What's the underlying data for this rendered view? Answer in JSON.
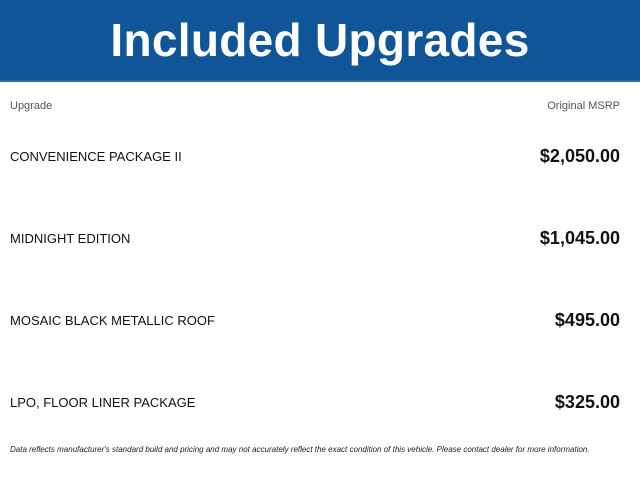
{
  "header": {
    "title": "Included Upgrades",
    "bg_color": "#0f5597"
  },
  "columns": {
    "upgrade": "Upgrade",
    "msrp": "Original MSRP"
  },
  "rows": [
    {
      "name": "CONVENIENCE PACKAGE II",
      "price": "$2,050.00"
    },
    {
      "name": "MIDNIGHT EDITION",
      "price": "$1,045.00"
    },
    {
      "name": "MOSAIC BLACK METALLIC ROOF",
      "price": "$495.00"
    },
    {
      "name": "LPO, FLOOR LINER PACKAGE",
      "price": "$325.00"
    }
  ],
  "footer": {
    "note": "Data reflects manufacturer's standard build and pricing and may not accurately reflect the exact condition of this vehicle. Please contact dealer for more information."
  }
}
